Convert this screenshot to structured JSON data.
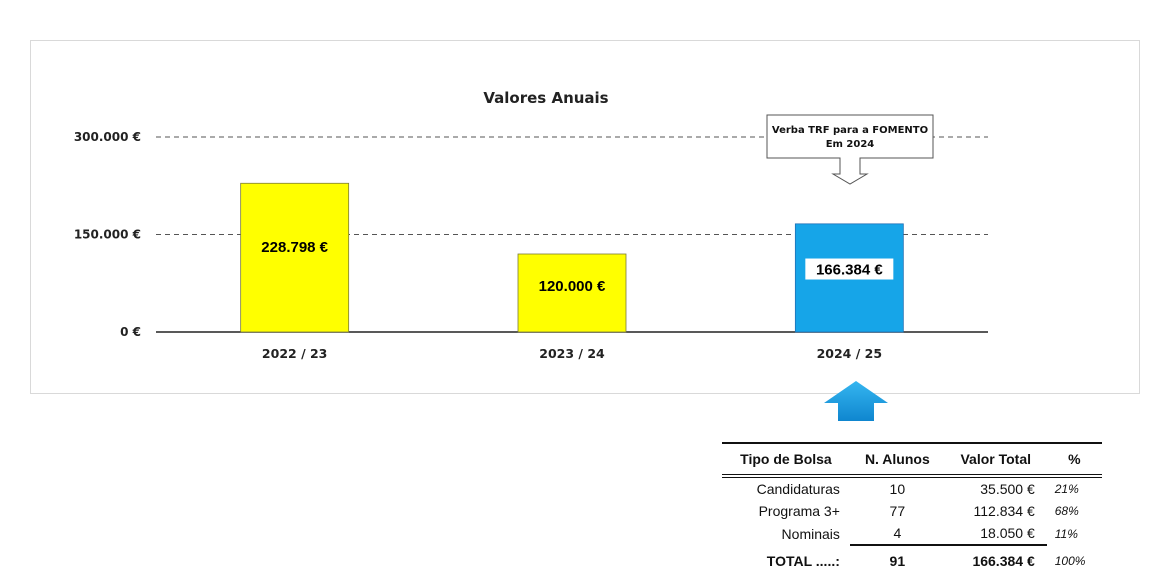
{
  "chart_data": {
    "type": "bar",
    "title": "Valores Anuais",
    "categories": [
      "2022 / 23",
      "2023 / 24",
      "2024 / 25"
    ],
    "values": [
      228798,
      120000,
      166384
    ],
    "value_labels": [
      "228.798 €",
      "120.000 €",
      "166.384 €"
    ],
    "bar_colors": [
      "#ffff00",
      "#ffff00",
      "#16a5e8"
    ],
    "yticks": [
      0,
      150000,
      300000
    ],
    "ytick_labels": [
      "0 €",
      "150.000 €",
      "300.000 €"
    ],
    "ylim": [
      0,
      300000
    ],
    "gridlines": "dashed",
    "annotation": {
      "lines": [
        "Verba TRF para a FOMENTO",
        "Em 2024"
      ],
      "target_category": "2024 / 25"
    }
  },
  "colors": {
    "highlight_bar": "#16a5e8",
    "standard_bar": "#ffff00",
    "arrow": "#1a8fd6"
  },
  "table": {
    "headers": [
      "Tipo de Bolsa",
      "N. Alunos",
      "Valor Total",
      "%"
    ],
    "rows": [
      {
        "tipo": "Candidaturas",
        "alunos": "10",
        "valor": "35.500 €",
        "pct": "21%"
      },
      {
        "tipo": "Programa 3+",
        "alunos": "77",
        "valor": "112.834 €",
        "pct": "68%"
      },
      {
        "tipo": "Nominais",
        "alunos": "4",
        "valor": "18.050 €",
        "pct": "11%"
      }
    ],
    "total": {
      "tipo": "TOTAL .....:",
      "alunos": "91",
      "valor": "166.384 €",
      "pct": "100%"
    }
  }
}
